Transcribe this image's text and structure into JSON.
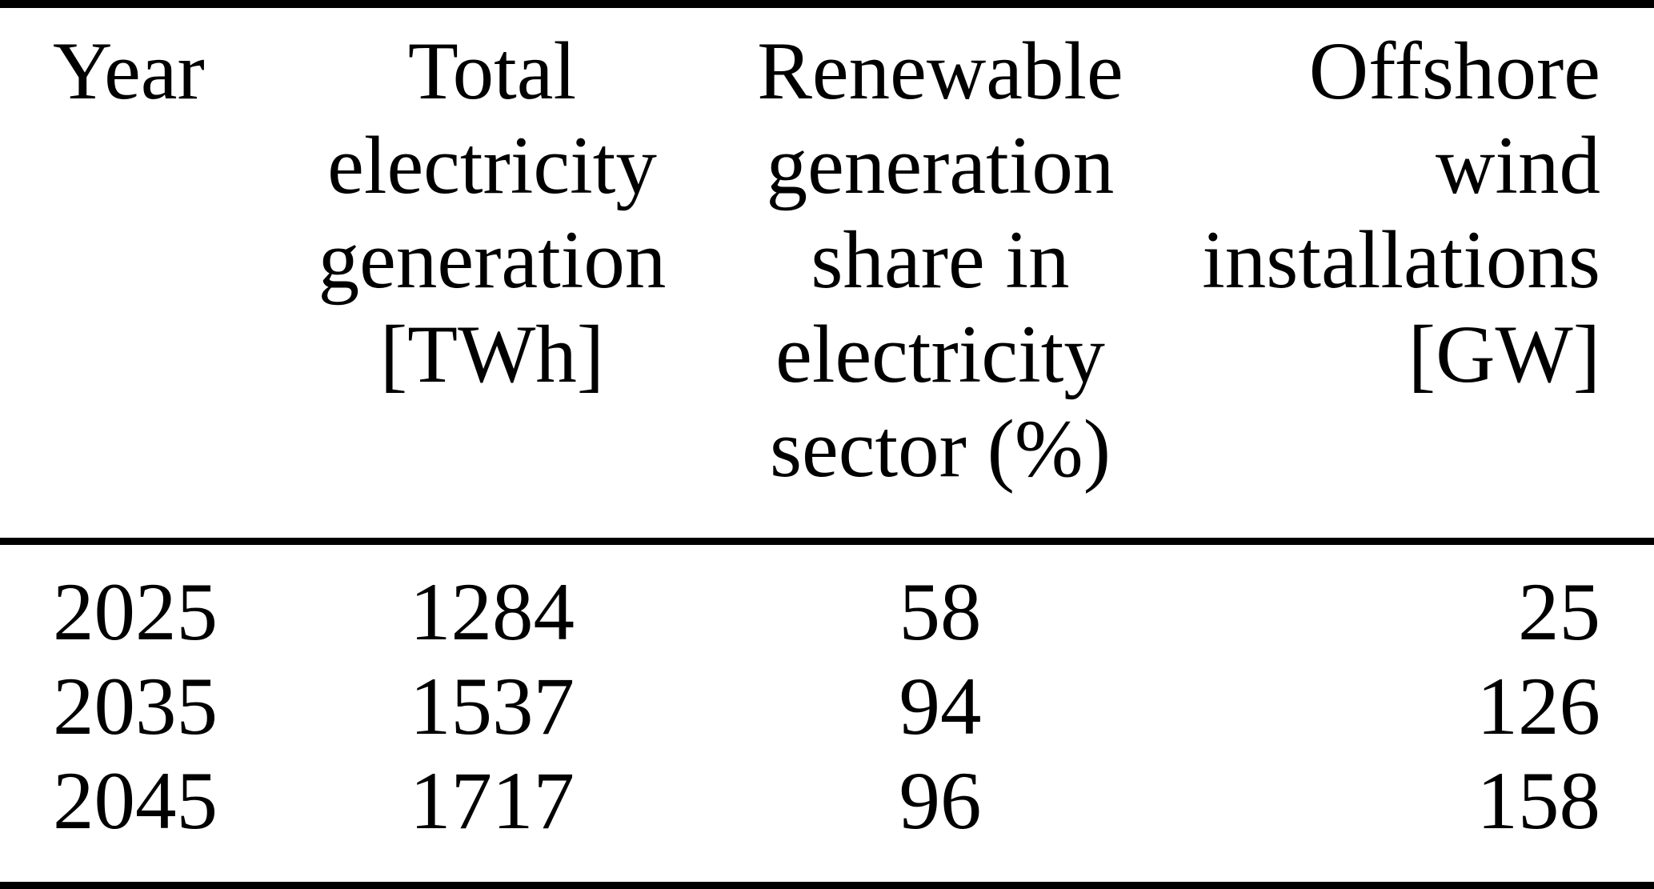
{
  "table": {
    "columns": [
      {
        "id": "year",
        "header_lines": [
          "Year"
        ]
      },
      {
        "id": "total_electricity_generation",
        "header_lines": [
          "Total",
          "electricity",
          "generation",
          "[TWh]"
        ]
      },
      {
        "id": "renewable_generation_share",
        "header_lines": [
          "Renewable",
          "generation",
          "share in",
          "electricity",
          "sector (%)"
        ]
      },
      {
        "id": "offshore_wind_installations",
        "header_lines": [
          "Offshore",
          "wind",
          "installations",
          "[GW]"
        ]
      }
    ],
    "rows": [
      {
        "year": "2025",
        "total_twh": "1284",
        "renewable_share_pct": "58",
        "offshore_wind_gw": "25"
      },
      {
        "year": "2035",
        "total_twh": "1537",
        "renewable_share_pct": "94",
        "offshore_wind_gw": "126"
      },
      {
        "year": "2045",
        "total_twh": "1717",
        "renewable_share_pct": "96",
        "offshore_wind_gw": "158"
      }
    ]
  },
  "chart_data": {
    "type": "table",
    "categories": [
      2025,
      2035,
      2045
    ],
    "series": [
      {
        "name": "Total electricity generation [TWh]",
        "values": [
          1284,
          1537,
          1717
        ]
      },
      {
        "name": "Renewable generation share in electricity sector (%)",
        "values": [
          58,
          94,
          96
        ]
      },
      {
        "name": "Offshore wind installations [GW]",
        "values": [
          25,
          126,
          158
        ]
      }
    ]
  },
  "colors": {
    "background": "#ffffff",
    "text": "#000000",
    "rule": "#000000"
  }
}
